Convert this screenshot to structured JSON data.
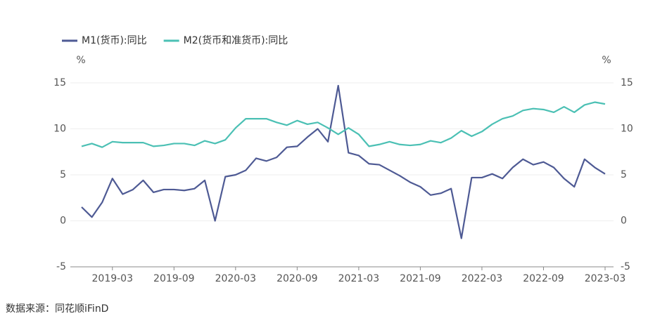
{
  "chart_data": {
    "type": "line",
    "legend": "top-left",
    "grid": true,
    "y_label": "%",
    "y2_label": "%",
    "source": "数据来源：同花顺iFinD",
    "categories": [
      null,
      null,
      null,
      "2019-03",
      null,
      null,
      null,
      null,
      null,
      "2019-09",
      null,
      null,
      null,
      null,
      null,
      "2020-03",
      null,
      null,
      null,
      null,
      null,
      "2020-09",
      null,
      null,
      null,
      null,
      null,
      "2021-03",
      null,
      null,
      null,
      null,
      null,
      "2021-09",
      null,
      null,
      null,
      null,
      null,
      "2022-03",
      null,
      null,
      null,
      null,
      null,
      "2022-09",
      null,
      null,
      null,
      null,
      null,
      "2023-03"
    ],
    "series": [
      {
        "name": "M1(货币):同比",
        "color": "#4e5a94",
        "values": [
          1.5,
          0.4,
          2.0,
          4.6,
          2.9,
          3.4,
          4.4,
          3.1,
          3.4,
          3.4,
          3.3,
          3.5,
          4.4,
          0.0,
          4.8,
          5.0,
          5.5,
          6.8,
          6.5,
          6.9,
          8.0,
          8.1,
          9.1,
          10.0,
          8.6,
          14.7,
          7.4,
          7.1,
          6.2,
          6.1,
          5.5,
          4.9,
          4.2,
          3.7,
          2.8,
          3.0,
          3.5,
          -1.9,
          4.7,
          4.7,
          5.1,
          4.6,
          5.8,
          6.7,
          6.1,
          6.4,
          5.8,
          4.6,
          3.7,
          6.7,
          5.8,
          5.1
        ]
      },
      {
        "name": "M2(货币和准货币):同比",
        "color": "#4bc0b4",
        "values": [
          8.1,
          8.4,
          8.0,
          8.6,
          8.5,
          8.5,
          8.5,
          8.1,
          8.2,
          8.4,
          8.4,
          8.2,
          8.7,
          8.4,
          8.8,
          10.1,
          11.1,
          11.1,
          11.1,
          10.7,
          10.4,
          10.9,
          10.5,
          10.7,
          10.1,
          9.4,
          10.1,
          9.4,
          8.1,
          8.3,
          8.6,
          8.3,
          8.2,
          8.3,
          8.7,
          8.5,
          9.0,
          9.8,
          9.2,
          9.7,
          10.5,
          11.1,
          11.4,
          12.0,
          12.2,
          12.1,
          11.8,
          12.4,
          11.8,
          12.6,
          12.9,
          12.7
        ]
      }
    ],
    "ylim": [
      -5,
      15
    ],
    "yticks": [
      -5,
      0,
      5,
      10,
      15
    ],
    "y2lim": [
      -5,
      15
    ],
    "y2ticks": [
      -5,
      0,
      5,
      10,
      15
    ]
  }
}
